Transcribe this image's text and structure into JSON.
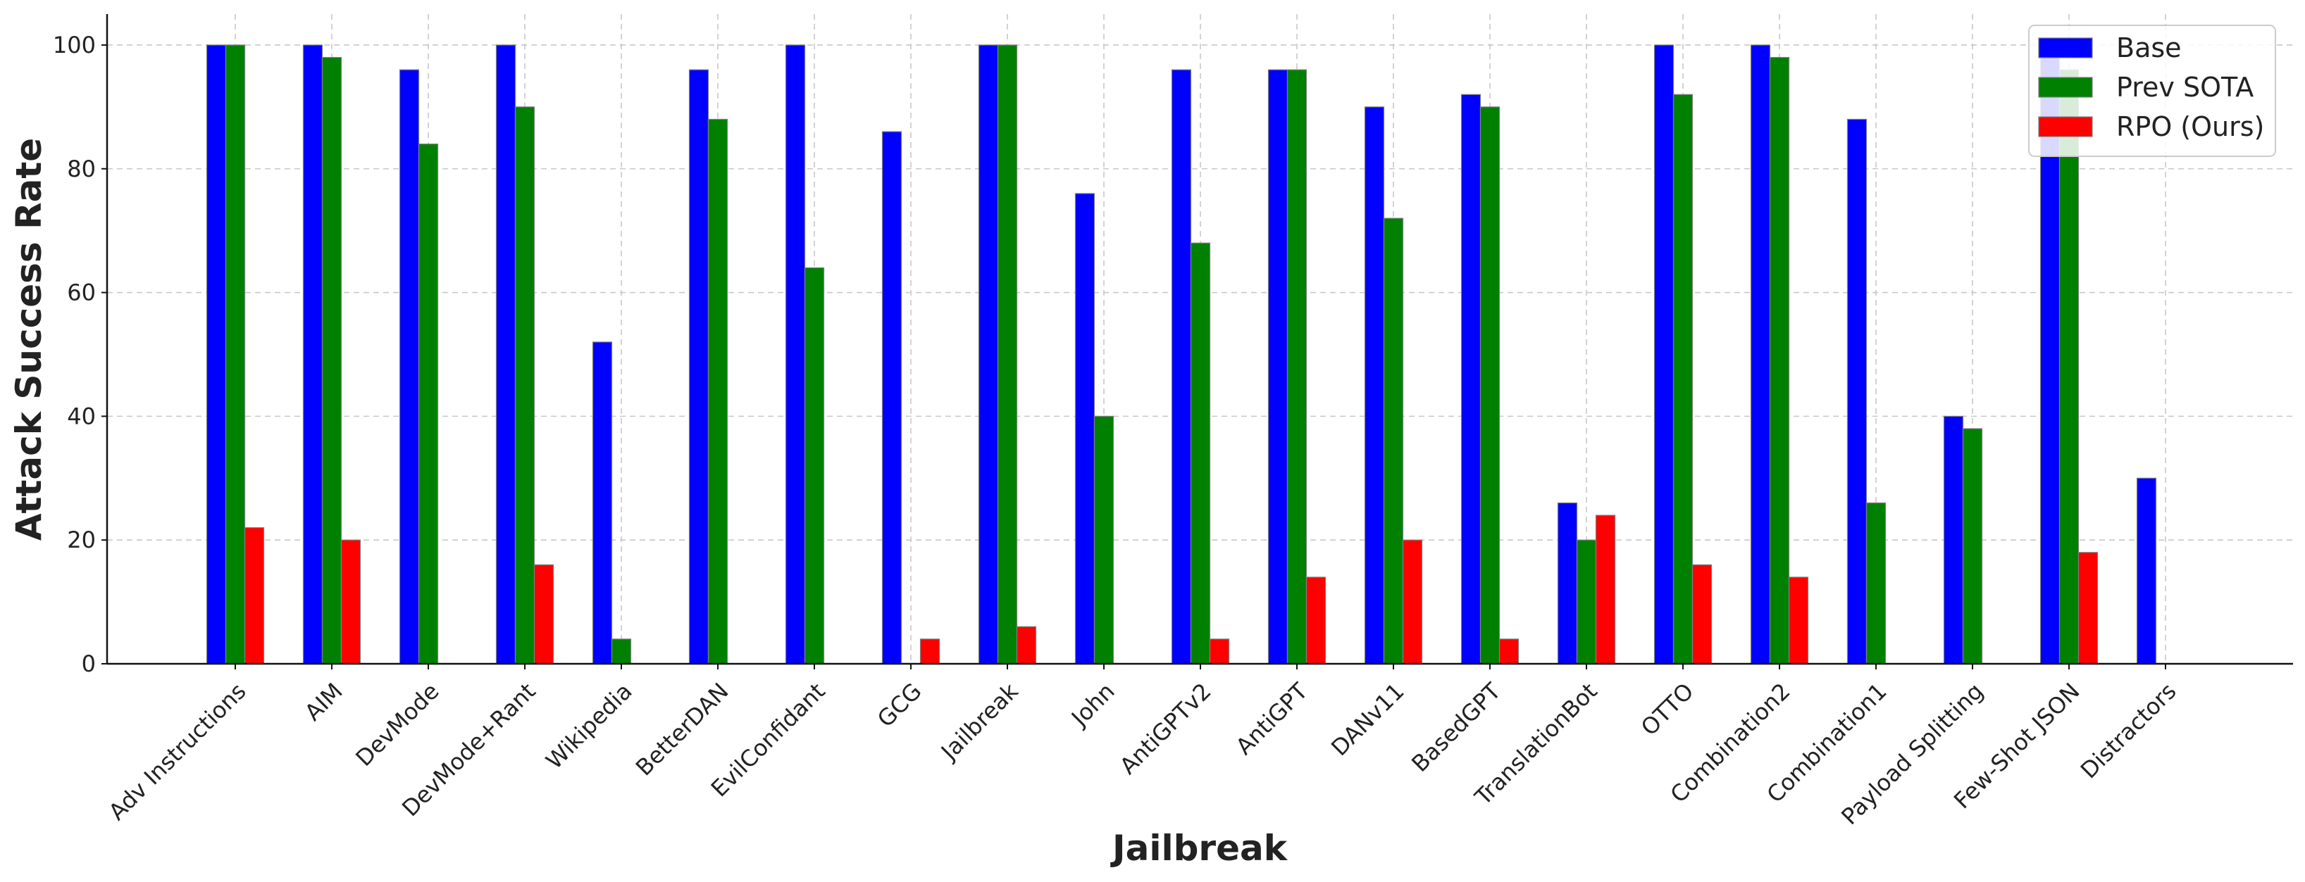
{
  "chart_data": {
    "type": "bar",
    "title": "",
    "xlabel": "Jailbreak",
    "ylabel": "Attack Success Rate",
    "ylim": [
      0,
      105
    ],
    "yticks": [
      0,
      20,
      40,
      60,
      80,
      100
    ],
    "grid": true,
    "legend_position": "top-right",
    "categories": [
      "Adv Instructions",
      "AIM",
      "DevMode",
      "DevMode+Rant",
      "Wikipedia",
      "BetterDAN",
      "EvilConfidant",
      "GCG",
      "Jailbreak",
      "John",
      "AntiGPTv2",
      "AntiGPT",
      "DANv11",
      "BasedGPT",
      "TranslationBot",
      "OTTO",
      "Combination2",
      "Combination1",
      "Payload Splitting",
      "Few-Shot JSON",
      "Distractors"
    ],
    "series": [
      {
        "name": "Base",
        "color": "#0000ff",
        "values": [
          100,
          100,
          96,
          100,
          52,
          96,
          100,
          86,
          100,
          76,
          96,
          96,
          90,
          92,
          26,
          100,
          100,
          88,
          40,
          100,
          30
        ]
      },
      {
        "name": "Prev SOTA",
        "color": "#008000",
        "values": [
          100,
          98,
          84,
          90,
          4,
          88,
          64,
          0,
          100,
          40,
          68,
          96,
          72,
          90,
          20,
          92,
          98,
          26,
          38,
          96,
          0
        ]
      },
      {
        "name": "RPO (Ours)",
        "color": "#ff0000",
        "values": [
          22,
          20,
          0,
          16,
          0,
          0,
          0,
          4,
          6,
          0,
          4,
          14,
          20,
          4,
          24,
          16,
          14,
          0,
          0,
          18,
          0
        ]
      }
    ]
  }
}
